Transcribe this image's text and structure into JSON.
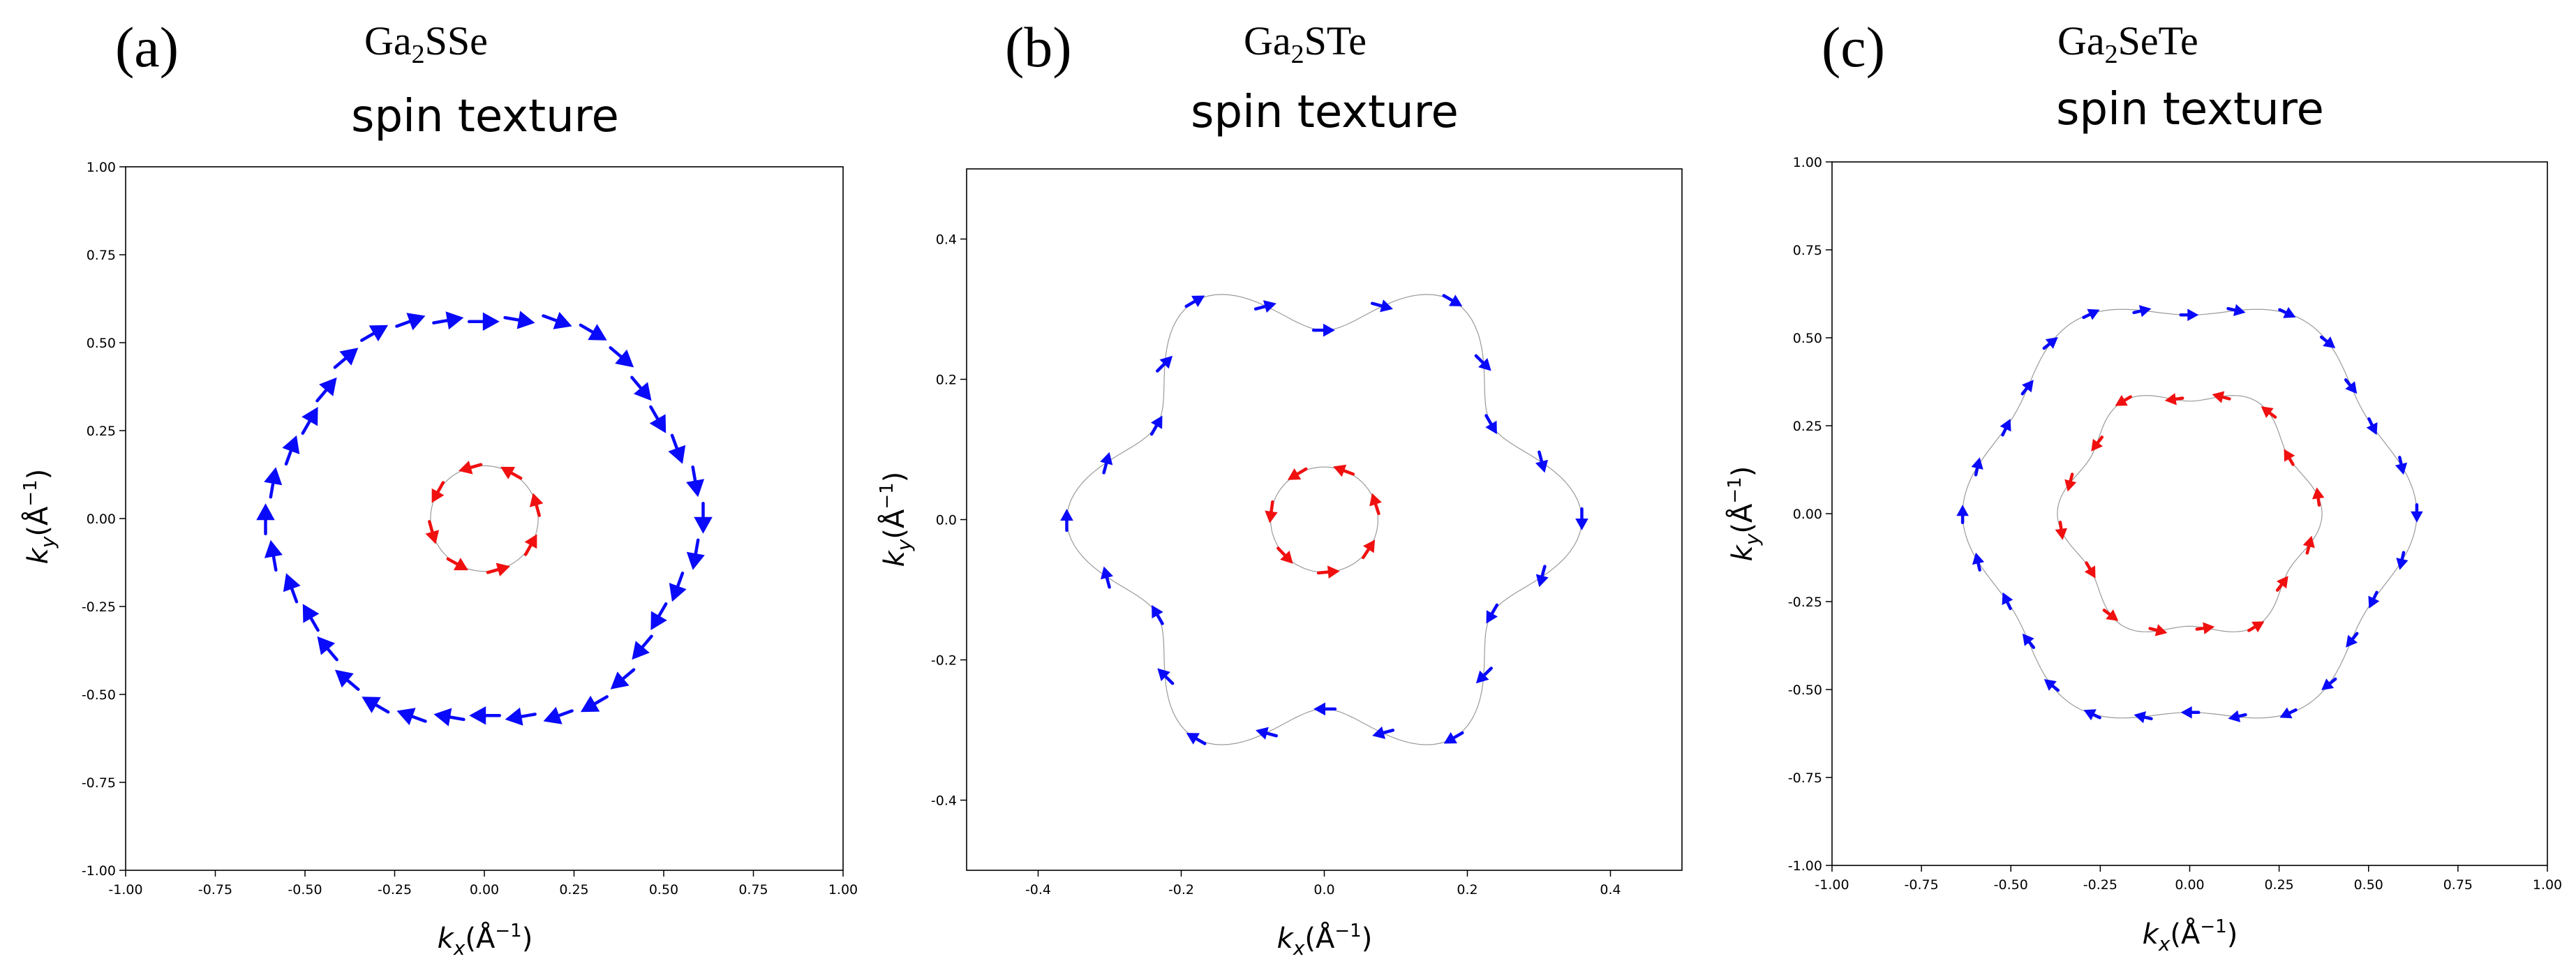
{
  "colors": {
    "outer": "#0a0afa",
    "inner": "#f01010",
    "frame": "#000000",
    "path": "#9a9a9a"
  },
  "panels": [
    {
      "label": "(a)",
      "compound": {
        "base": "Ga",
        "sub": "2",
        "rest": "SSe"
      },
      "title": "spin texture",
      "xlabel": "kx(Å^-1)",
      "ylabel": "ky(Å^-1)"
    },
    {
      "label": "(b)",
      "compound": {
        "base": "Ga",
        "sub": "2",
        "rest": "STe"
      },
      "title": "spin texture",
      "xlabel": "kx(Å^-1)",
      "ylabel": "ky(Å^-1)"
    },
    {
      "label": "(c)",
      "compound": {
        "base": "Ga",
        "sub": "2",
        "rest": "SeTe"
      },
      "title": "spin texture",
      "xlabel": "kx(Å^-1)",
      "ylabel": "ky(Å^-1)"
    }
  ],
  "chart_data": [
    {
      "type": "scatter",
      "title": "spin texture",
      "xlabel": "kx(Å^-1)",
      "ylabel": "ky(Å^-1)",
      "xlim": [
        -1.0,
        1.0
      ],
      "ylim": [
        -1.0,
        1.0
      ],
      "xticks": [
        "-1.00",
        "-0.75",
        "-0.50",
        "-0.25",
        "0.00",
        "0.25",
        "0.50",
        "0.75",
        "1.00"
      ],
      "yticks": [
        "1.00",
        "0.75",
        "0.50",
        "0.25",
        "0.00",
        "-0.25",
        "-0.50",
        "-0.75",
        "-1.00"
      ],
      "xtick_values": [
        -1.0,
        -0.75,
        -0.5,
        -0.25,
        0.0,
        0.25,
        0.5,
        0.75,
        1.0
      ],
      "ytick_values": [
        1.0,
        0.75,
        0.5,
        0.25,
        0.0,
        -0.25,
        -0.5,
        -0.75,
        -1.0
      ],
      "grid": false,
      "series": [
        {
          "color": "outer",
          "radius": 0.585,
          "hex_amp": 0.025,
          "count": 36,
          "direction": "clockwise",
          "arrow_len": 0.085,
          "show_path": false
        },
        {
          "color": "inner",
          "radius": 0.15,
          "hex_amp": 0.0,
          "count": 8,
          "direction": "counterclockwise",
          "arrow_len": 0.065,
          "show_path": true
        }
      ]
    },
    {
      "type": "scatter",
      "title": "spin texture",
      "xlabel": "kx(Å^-1)",
      "ylabel": "ky(Å^-1)",
      "xlim": [
        -0.5,
        0.5
      ],
      "ylim": [
        -0.5,
        0.5
      ],
      "xticks": [
        "-0.4",
        "-0.2",
        "0.0",
        "0.2",
        "0.4"
      ],
      "yticks": [
        "0.4",
        "0.2",
        "0.0",
        "-0.2",
        "-0.4"
      ],
      "xtick_values": [
        -0.4,
        -0.2,
        0.0,
        0.2,
        0.4
      ],
      "ytick_values": [
        0.4,
        0.2,
        0.0,
        -0.2,
        -0.4
      ],
      "grid": false,
      "series": [
        {
          "color": "outer",
          "radius": 0.315,
          "hex_amp": 0.045,
          "count": 24,
          "direction": "clockwise",
          "arrow_len": 0.03,
          "show_path": true
        },
        {
          "color": "inner",
          "radius": 0.075,
          "hex_amp": 0.0,
          "count": 7,
          "direction": "counterclockwise",
          "arrow_len": 0.03,
          "show_path": true
        }
      ]
    },
    {
      "type": "scatter",
      "title": "spin texture",
      "xlabel": "kx(Å^-1)",
      "ylabel": "ky(Å^-1)",
      "xlim": [
        -1.0,
        1.0
      ],
      "ylim": [
        -1.0,
        1.0
      ],
      "xticks": [
        "-1.00",
        "-0.75",
        "-0.50",
        "-0.25",
        "0.00",
        "0.25",
        "0.50",
        "0.75",
        "1.00"
      ],
      "yticks": [
        "1.00",
        "0.75",
        "0.50",
        "0.25",
        "0.00",
        "-0.25",
        "-0.50",
        "-0.75",
        "-1.00"
      ],
      "xtick_values": [
        -1.0,
        -0.75,
        -0.5,
        -0.25,
        0.0,
        0.25,
        0.5,
        0.75,
        1.0
      ],
      "ytick_values": [
        1.0,
        0.75,
        0.5,
        0.25,
        0.0,
        -0.25,
        -0.5,
        -0.75,
        -1.0
      ],
      "grid": false,
      "series": [
        {
          "color": "outer",
          "radius": 0.6,
          "hex_amp": 0.035,
          "count": 28,
          "direction": "clockwise",
          "arrow_len": 0.05,
          "show_path": true
        },
        {
          "color": "inner",
          "radius": 0.345,
          "hex_amp": 0.025,
          "count": 16,
          "direction": "counterclockwise",
          "arrow_len": 0.05,
          "show_path": true
        }
      ]
    }
  ]
}
